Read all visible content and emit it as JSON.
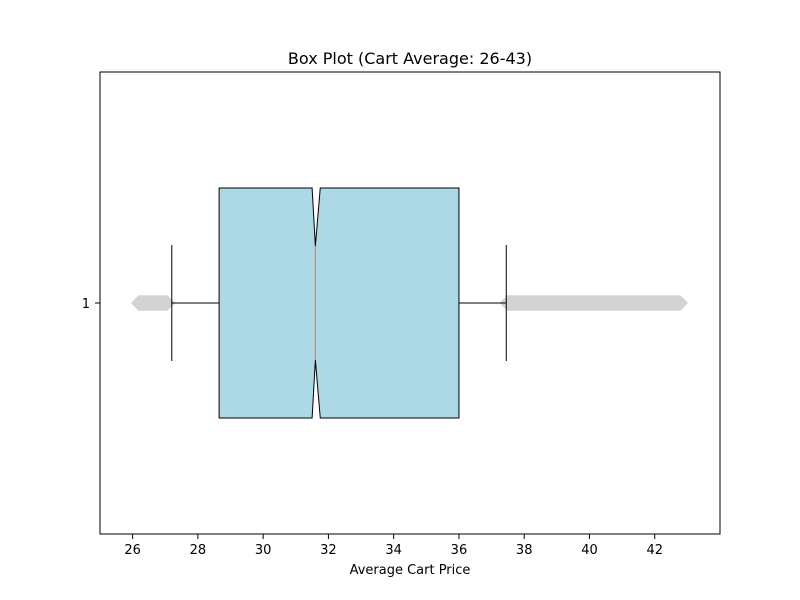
{
  "chart_data": {
    "type": "box",
    "orientation": "horizontal",
    "notched": true,
    "title": "Box Plot (Cart Average: 26-43)",
    "xlabel": "Average Cart Price",
    "ylabel": "",
    "xlim": [
      25.0,
      44.0
    ],
    "xticks": [
      26,
      28,
      30,
      32,
      34,
      36,
      38,
      40,
      42
    ],
    "categories": [
      "1"
    ],
    "boxes": [
      {
        "category": "1",
        "whisker_low": 27.2,
        "q1": 28.65,
        "notch_low": 31.5,
        "median": 31.6,
        "notch_high": 31.75,
        "q3": 36.0,
        "whisker_high": 37.45,
        "outliers_low_range": [
          25.95,
          27.35
        ],
        "outliers_high_range": [
          37.25,
          43.05
        ]
      }
    ],
    "box_color": "#add8e6",
    "median_color": "#ff7f0e",
    "outlier_color": "#d3d3d3",
    "grid": false,
    "legend": "none"
  }
}
